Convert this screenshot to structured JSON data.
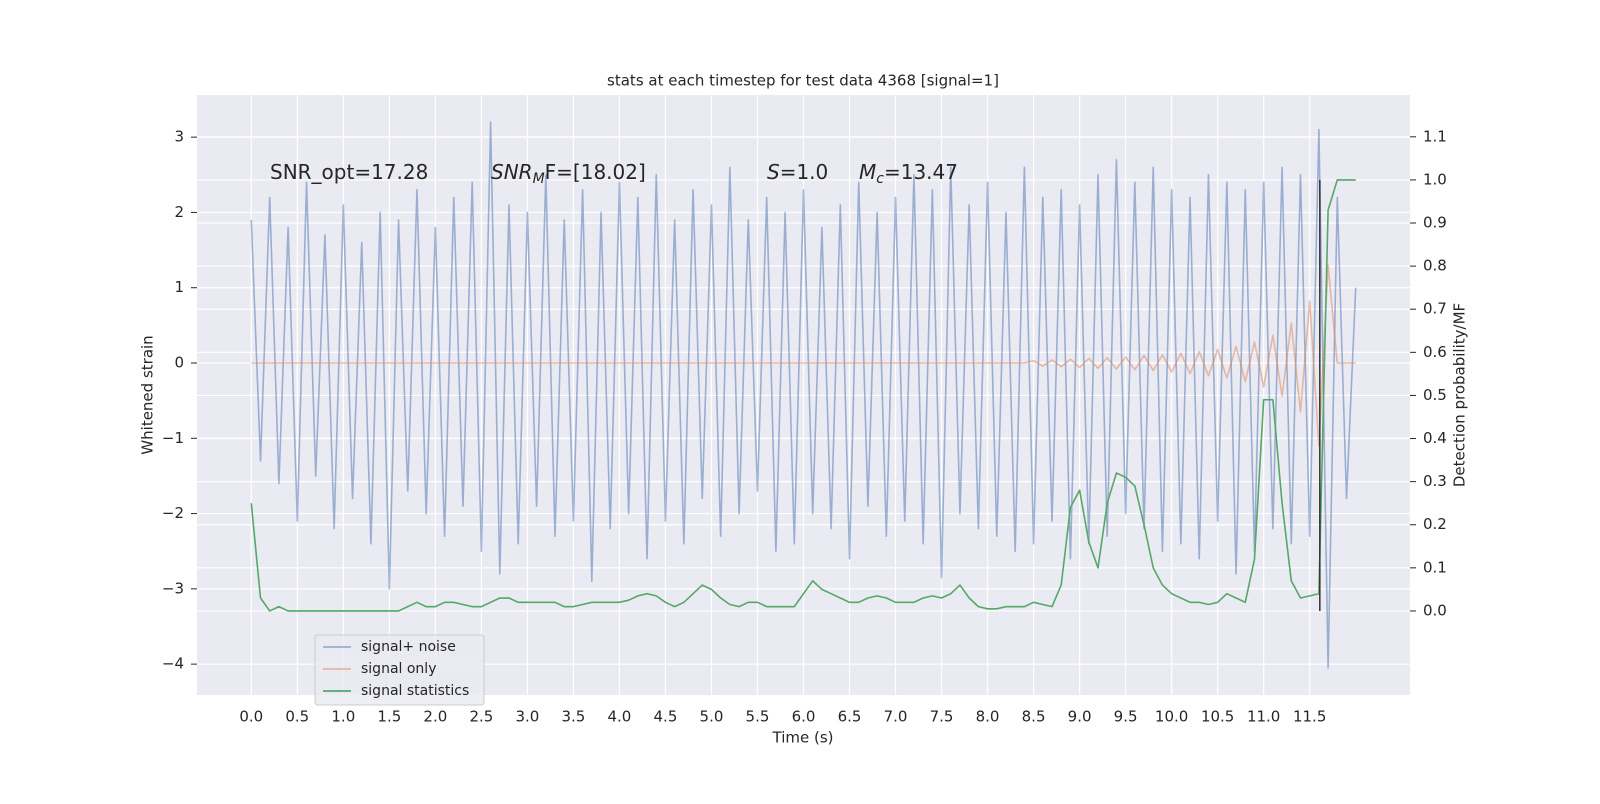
{
  "chart_data": {
    "type": "line",
    "title": "stats at each timestep for test data 4368 [signal=1]",
    "xlabel": "Time (s)",
    "ylabel": "Whitened strain",
    "y2label": "Detection probability/MF",
    "annotations": [
      {
        "main": "SNR_opt=17.28"
      },
      {
        "main": "SNR",
        "sub": "M",
        "rest": "F=[18.02]"
      },
      {
        "main": "S",
        "rest": "=1.0"
      },
      {
        "main": "M",
        "sub": "c",
        "rest": "=13.47"
      }
    ],
    "x": [
      0.0,
      0.1,
      0.2,
      0.3,
      0.4,
      0.5,
      0.6,
      0.7,
      0.8,
      0.9,
      1.0,
      1.1,
      1.2,
      1.3,
      1.4,
      1.5,
      1.6,
      1.7,
      1.8,
      1.9,
      2.0,
      2.1,
      2.2,
      2.3,
      2.4,
      2.5,
      2.6,
      2.7,
      2.8,
      2.9,
      3.0,
      3.1,
      3.2,
      3.3,
      3.4,
      3.5,
      3.6,
      3.7,
      3.8,
      3.9,
      4.0,
      4.1,
      4.2,
      4.3,
      4.4,
      4.5,
      4.6,
      4.7,
      4.8,
      4.9,
      5.0,
      5.1,
      5.2,
      5.3,
      5.4,
      5.5,
      5.6,
      5.7,
      5.8,
      5.9,
      6.0,
      6.1,
      6.2,
      6.3,
      6.4,
      6.5,
      6.6,
      6.7,
      6.8,
      6.9,
      7.0,
      7.1,
      7.2,
      7.3,
      7.4,
      7.5,
      7.6,
      7.7,
      7.8,
      7.9,
      8.0,
      8.1,
      8.2,
      8.3,
      8.4,
      8.5,
      8.6,
      8.7,
      8.8,
      8.9,
      9.0,
      9.1,
      9.2,
      9.3,
      9.4,
      9.5,
      9.6,
      9.7,
      9.8,
      9.9,
      10.0,
      10.1,
      10.2,
      10.3,
      10.4,
      10.5,
      10.6,
      10.7,
      10.8,
      10.9,
      11.0,
      11.1,
      11.2,
      11.3,
      11.4,
      11.5,
      11.6,
      11.7,
      11.8,
      11.9,
      12.0
    ],
    "series": [
      {
        "name": "signal+ noise",
        "color": "#4c72b0",
        "alpha": 0.5,
        "values": [
          1.9,
          -1.3,
          2.2,
          -1.6,
          1.8,
          -2.1,
          2.4,
          -1.5,
          1.7,
          -2.2,
          2.1,
          -1.8,
          1.6,
          -2.4,
          2.0,
          -3.0,
          1.9,
          -1.7,
          2.3,
          -2.0,
          1.8,
          -2.3,
          2.2,
          -1.9,
          2.4,
          -2.5,
          3.2,
          -2.8,
          2.1,
          -2.4,
          2.0,
          -1.9,
          2.5,
          -2.3,
          1.9,
          -2.1,
          2.3,
          -2.9,
          2.0,
          -2.2,
          2.4,
          -2.0,
          2.2,
          -2.6,
          2.5,
          -2.1,
          1.9,
          -2.4,
          2.3,
          -1.8,
          2.1,
          -2.3,
          2.6,
          -2.0,
          1.9,
          -1.7,
          2.2,
          -2.5,
          2.0,
          -2.4,
          2.3,
          -2.0,
          1.8,
          -2.2,
          2.1,
          -2.6,
          2.4,
          -1.9,
          2.0,
          -2.3,
          2.2,
          -2.1,
          2.5,
          -2.4,
          2.3,
          -2.85,
          2.6,
          -2.0,
          2.1,
          -2.2,
          2.4,
          -2.3,
          2.0,
          -2.5,
          2.6,
          -2.4,
          2.2,
          -2.1,
          2.3,
          -2.6,
          2.1,
          -2.4,
          2.5,
          -2.3,
          2.7,
          -2.0,
          2.4,
          -2.2,
          2.6,
          -2.5,
          2.3,
          -2.4,
          2.2,
          -2.6,
          2.5,
          -2.1,
          2.4,
          -2.8,
          2.3,
          -2.5,
          2.4,
          -2.2,
          2.6,
          -2.4,
          2.5,
          -2.3,
          3.1,
          -4.05,
          2.2,
          -1.8,
          1.0
        ]
      },
      {
        "name": "signal only",
        "color": "#dd8452",
        "alpha": 0.5,
        "values": [
          0,
          0,
          0,
          0,
          0,
          0,
          0,
          0,
          0,
          0,
          0,
          0,
          0,
          0,
          0,
          0,
          0,
          0,
          0,
          0,
          0,
          0,
          0,
          0,
          0,
          0,
          0,
          0,
          0,
          0,
          0,
          0,
          0,
          0,
          0,
          0,
          0,
          0,
          0,
          0,
          0,
          0,
          0,
          0,
          0,
          0,
          0,
          0,
          0,
          0,
          0,
          0,
          0,
          0,
          0,
          0,
          0,
          0,
          0,
          0,
          0,
          0,
          0,
          0,
          0,
          0,
          0,
          0,
          0,
          0,
          0,
          0,
          0,
          0,
          0,
          0,
          0,
          0,
          0,
          0,
          0,
          0,
          0,
          0,
          0,
          0.03,
          -0.04,
          0.04,
          -0.05,
          0.05,
          -0.06,
          0.06,
          -0.07,
          0.07,
          -0.08,
          0.08,
          -0.09,
          0.1,
          -0.1,
          0.11,
          -0.12,
          0.13,
          -0.14,
          0.15,
          -0.17,
          0.18,
          -0.2,
          0.22,
          -0.25,
          0.28,
          -0.32,
          0.37,
          -0.44,
          0.53,
          -0.65,
          0.82,
          -1.1,
          1.3,
          0.0,
          0.0,
          0.0
        ]
      },
      {
        "name": "signal statistics",
        "color": "#55a868",
        "alpha": 1,
        "axis": "y2",
        "values": [
          0.25,
          0.03,
          0.0,
          0.01,
          0.0,
          0.0,
          0.0,
          0.0,
          0.0,
          0.0,
          0.0,
          0.0,
          0.0,
          0.0,
          0.0,
          0.0,
          0.0,
          0.01,
          0.02,
          0.01,
          0.01,
          0.02,
          0.02,
          0.015,
          0.01,
          0.01,
          0.02,
          0.03,
          0.03,
          0.02,
          0.02,
          0.02,
          0.02,
          0.02,
          0.01,
          0.01,
          0.015,
          0.02,
          0.02,
          0.02,
          0.02,
          0.025,
          0.035,
          0.04,
          0.035,
          0.02,
          0.01,
          0.02,
          0.04,
          0.06,
          0.05,
          0.03,
          0.015,
          0.01,
          0.02,
          0.02,
          0.01,
          0.01,
          0.01,
          0.01,
          0.04,
          0.07,
          0.05,
          0.04,
          0.03,
          0.02,
          0.02,
          0.03,
          0.035,
          0.03,
          0.02,
          0.02,
          0.02,
          0.03,
          0.035,
          0.03,
          0.04,
          0.06,
          0.03,
          0.01,
          0.005,
          0.005,
          0.01,
          0.01,
          0.01,
          0.02,
          0.015,
          0.01,
          0.06,
          0.24,
          0.28,
          0.16,
          0.1,
          0.25,
          0.32,
          0.31,
          0.29,
          0.2,
          0.1,
          0.06,
          0.04,
          0.03,
          0.02,
          0.02,
          0.015,
          0.02,
          0.04,
          0.03,
          0.02,
          0.12,
          0.49,
          0.49,
          0.25,
          0.07,
          0.03,
          0.035,
          0.04,
          0.93,
          1.0,
          1.0,
          1.0
        ]
      }
    ],
    "vlines": [
      {
        "x": 11.61,
        "ymin": 0.0,
        "ymax": 1.0,
        "color": "#333333"
      }
    ],
    "xlim": [
      -0.59,
      12.59
    ],
    "ylim": [
      -4.41,
      3.56
    ],
    "y2lim": [
      -0.195,
      1.197
    ],
    "xticks": [
      {
        "value": 0,
        "label": "0.0"
      },
      0.5,
      {
        "value": 1,
        "label": "1.0"
      },
      1.5,
      {
        "value": 2,
        "label": "2.0"
      },
      2.5,
      {
        "value": 3,
        "label": "3.0"
      },
      3.5,
      {
        "value": 4,
        "label": "4.0"
      },
      4.5,
      {
        "value": 5,
        "label": "5.0"
      },
      5.5,
      {
        "value": 6,
        "label": "6.0"
      },
      6.5,
      {
        "value": 7,
        "label": "7.0"
      },
      7.5,
      {
        "value": 8,
        "label": "8.0"
      },
      8.5,
      {
        "value": 9,
        "label": "9.0"
      },
      9.5,
      {
        "value": 10,
        "label": "10.0"
      },
      10.5,
      {
        "value": 11,
        "label": "11.0"
      },
      11.5
    ],
    "yticks": [
      {
        "value": -4,
        "label": "−4"
      },
      {
        "value": -3,
        "label": "−3"
      },
      {
        "value": -2,
        "label": "−2"
      },
      {
        "value": -1,
        "label": "−1"
      },
      0,
      1,
      2,
      3
    ],
    "y2ticks": [
      {
        "value": 0,
        "label": "0.0"
      },
      0.1,
      0.2,
      0.3,
      0.4,
      0.5,
      0.6,
      0.7,
      0.8,
      0.9,
      {
        "value": 1,
        "label": "1.0"
      },
      1.1
    ],
    "grid": true,
    "legend": "lower left"
  }
}
